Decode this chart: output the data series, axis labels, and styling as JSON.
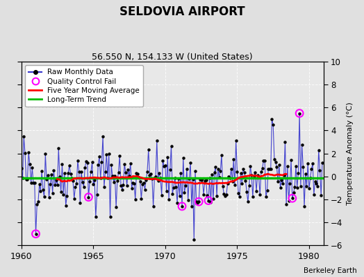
{
  "title": "SELDOVIA AIRPORT",
  "subtitle": "56.550 N, 154.133 W (United States)",
  "ylabel_right": "Temperature Anomaly (°C)",
  "credit": "Berkeley Earth",
  "xlim": [
    1960,
    1981
  ],
  "ylim": [
    -6,
    10
  ],
  "yticks": [
    -6,
    -4,
    -2,
    0,
    2,
    4,
    6,
    8,
    10
  ],
  "xticks": [
    1960,
    1965,
    1970,
    1975,
    1980
  ],
  "background_color": "#e0e0e0",
  "plot_background": "#e8e8e8",
  "raw_color": "#3333cc",
  "dot_color": "#000000",
  "qc_color": "#ff00ff",
  "ma_color": "#ff0000",
  "trend_color": "#00bb00",
  "trend_value": -0.15,
  "seed": 42,
  "start_year": 1960,
  "end_year": 1981,
  "figsize": [
    5.24,
    4.0
  ],
  "dpi": 100,
  "qc_points": [
    [
      1961.0,
      -5.0
    ],
    [
      1964.7,
      -1.8
    ],
    [
      1971.2,
      -2.6
    ],
    [
      1972.3,
      -2.2
    ],
    [
      1973.0,
      -2.1
    ],
    [
      1978.8,
      -1.9
    ],
    [
      1979.3,
      5.5
    ]
  ],
  "forced_points": [
    [
      1960.2,
      3.5
    ],
    [
      1965.2,
      -3.5
    ],
    [
      1965.7,
      3.5
    ],
    [
      1972.0,
      -5.5
    ],
    [
      1977.5,
      4.5
    ]
  ]
}
